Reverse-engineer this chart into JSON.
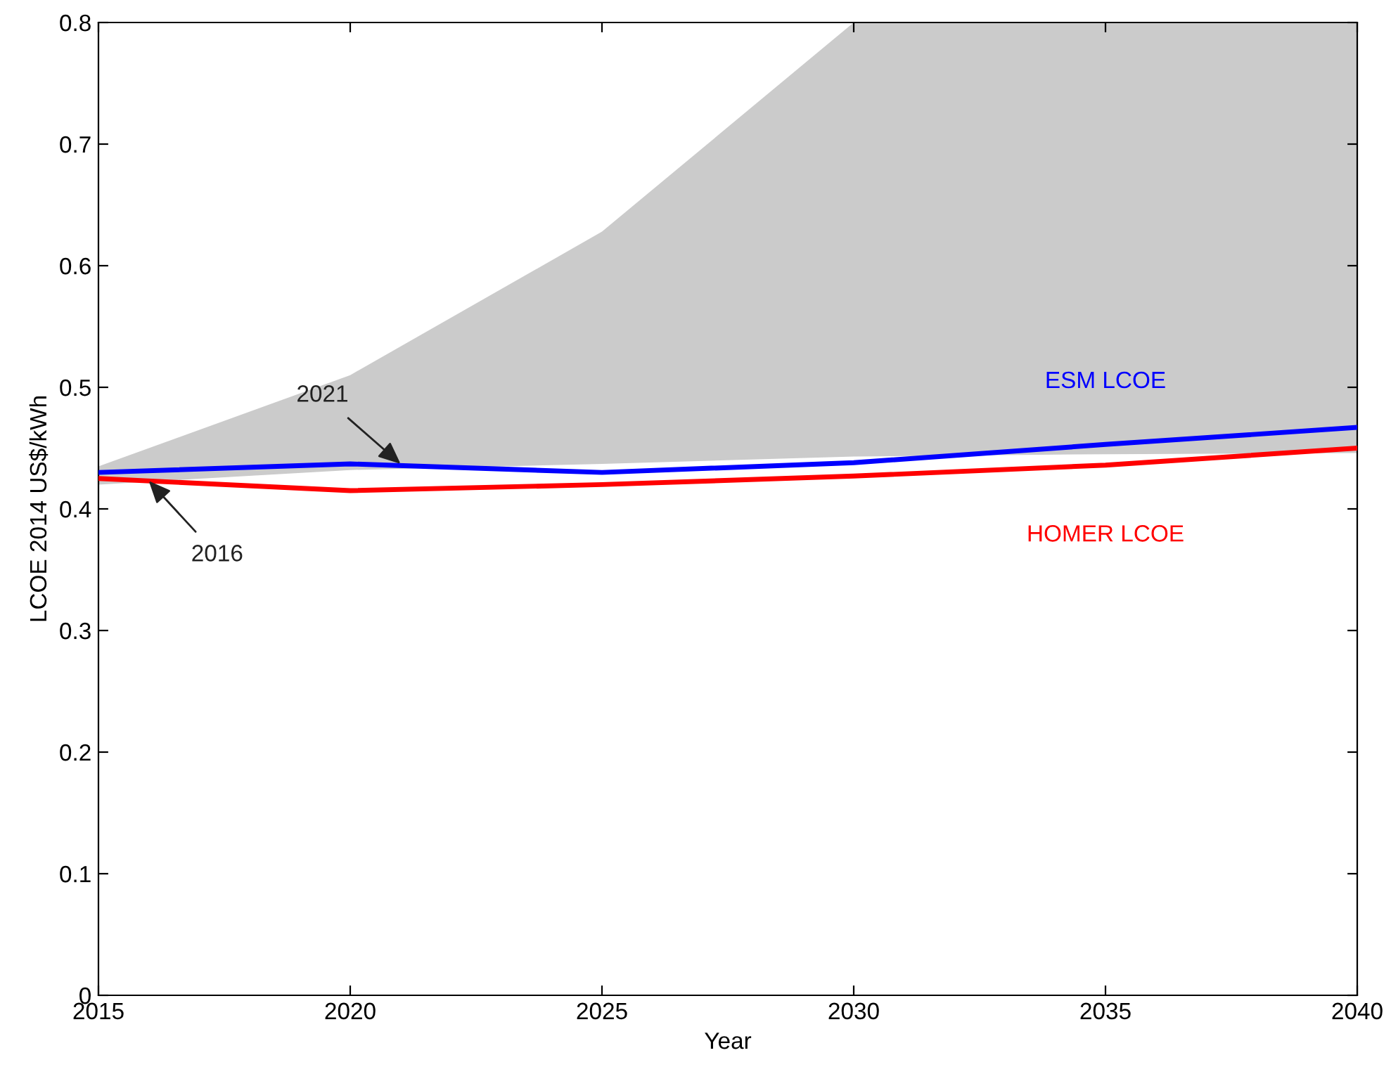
{
  "chart_data": {
    "type": "line",
    "xlabel": "Year",
    "ylabel": "LCOE 2014 US$/kWh",
    "x": [
      2015,
      2020,
      2025,
      2030,
      2035,
      2040
    ],
    "series": [
      {
        "name": "ESM LCOE",
        "color": "#0000ff",
        "values": [
          0.43,
          0.437,
          0.43,
          0.438,
          0.453,
          0.467
        ],
        "lower": [
          0.42,
          0.432,
          0.437,
          0.443,
          0.445,
          0.446
        ],
        "upper": [
          0.435,
          0.51,
          0.628,
          0.8,
          0.8,
          0.8
        ]
      },
      {
        "name": "HOMER LCOE",
        "color": "#ff0000",
        "values": [
          0.425,
          0.415,
          0.42,
          0.427,
          0.436,
          0.45
        ]
      }
    ],
    "annotations": [
      {
        "text": "2021",
        "x": 2021,
        "y": 0.437
      },
      {
        "text": "2016",
        "x": 2016,
        "y": 0.423
      }
    ],
    "xlim": [
      2015,
      2040
    ],
    "xticks": [
      2015,
      2020,
      2025,
      2030,
      2035,
      2040
    ],
    "ylim": [
      0,
      0.8
    ],
    "yticks": [
      0,
      0.1,
      0.2,
      0.3,
      0.4,
      0.5,
      0.6,
      0.7,
      0.8
    ],
    "grid": false,
    "legend": false
  }
}
